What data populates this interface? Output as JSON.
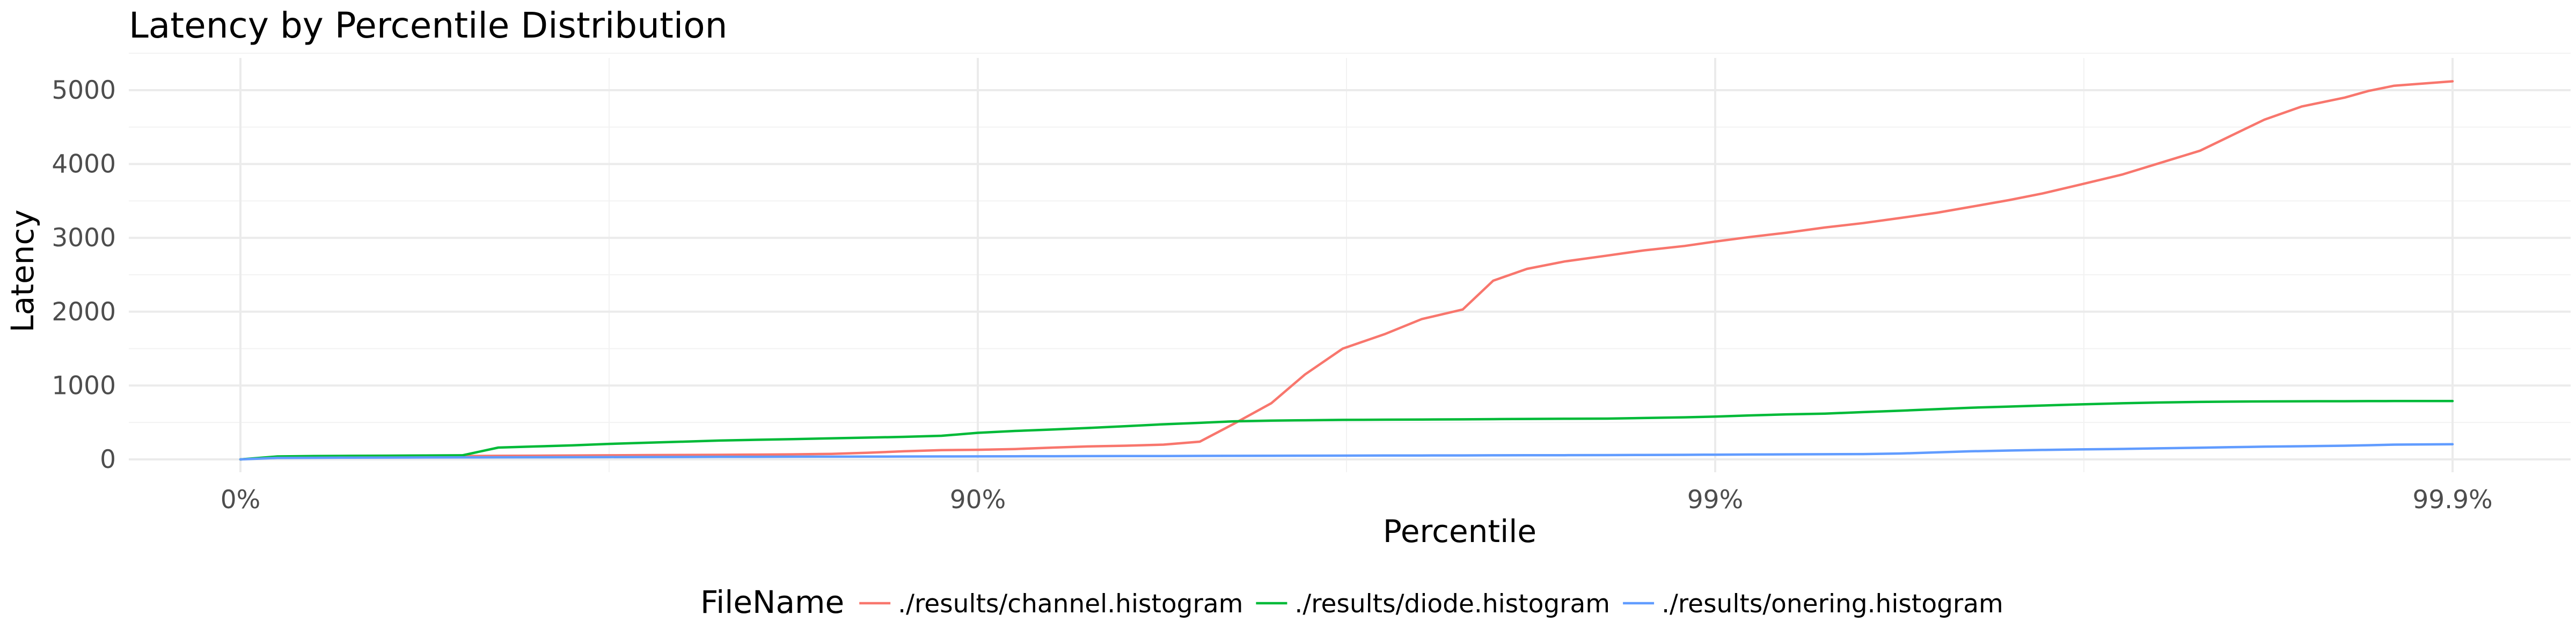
{
  "chart_data": {
    "type": "line",
    "title": "Latency by Percentile Distribution",
    "xlabel": "Percentile",
    "ylabel": "Latency",
    "x_scale": "inverse-percentile (log10 of 1/(1-p))",
    "x_ticks": [
      0,
      90,
      99,
      99.9
    ],
    "x_tick_labels": [
      "0%",
      "90%",
      "99%",
      "99.9%"
    ],
    "ylim": [
      0,
      5300
    ],
    "y_ticks": [
      0,
      1000,
      2000,
      3000,
      4000,
      5000
    ],
    "y_tick_labels": [
      "0",
      "1000",
      "2000",
      "3000",
      "4000",
      "5000"
    ],
    "grid": true,
    "legend_position": "bottom",
    "legend_title": "FileName",
    "series": [
      {
        "name": "./results/channel.histogram",
        "color": "#F8766D",
        "x": [
          0,
          10.9,
          20.6,
          29.2,
          36.9,
          43.8,
          50.0,
          55.3,
          60.2,
          64.5,
          68.4,
          71.8,
          74.9,
          77.6,
          80.0,
          82.2,
          84.2,
          85.9,
          87.4,
          88.8,
          90.0,
          91.1,
          92.1,
          92.9,
          93.7,
          94.4,
          95.0,
          95.5,
          96.0,
          96.4,
          96.8,
          97.2,
          97.5,
          97.8,
          98.0,
          98.2,
          98.4,
          98.6,
          98.75,
          98.9,
          99.0,
          99.1,
          99.2,
          99.29,
          99.37,
          99.44,
          99.5,
          99.55,
          99.6,
          99.64,
          99.68,
          99.72,
          99.75,
          99.78,
          99.8,
          99.82,
          99.84,
          99.86,
          99.87,
          99.88,
          99.9
        ],
        "y": [
          0,
          30,
          35,
          38,
          40,
          42,
          45,
          48,
          50,
          52,
          55,
          58,
          60,
          62,
          65,
          68,
          75,
          90,
          110,
          125,
          130,
          140,
          160,
          175,
          185,
          200,
          240,
          480,
          760,
          1150,
          1500,
          1700,
          1900,
          2030,
          2420,
          2580,
          2680,
          2760,
          2830,
          2890,
          2950,
          3010,
          3070,
          3140,
          3200,
          3270,
          3340,
          3420,
          3510,
          3600,
          3720,
          3860,
          4010,
          4180,
          4380,
          4600,
          4780,
          4900,
          4990,
          5060,
          5120
        ]
      },
      {
        "name": "./results/diode.histogram",
        "color": "#00BA38",
        "x": [
          0,
          10.9,
          20.6,
          29.2,
          36.9,
          43.8,
          50.0,
          55.3,
          60.2,
          64.5,
          68.4,
          71.8,
          74.9,
          77.6,
          80.0,
          82.2,
          84.2,
          85.9,
          87.4,
          88.8,
          90.0,
          91.1,
          92.1,
          92.9,
          93.7,
          94.4,
          95.0,
          95.5,
          96.0,
          96.4,
          96.8,
          97.2,
          97.5,
          97.8,
          98.0,
          98.2,
          98.4,
          98.6,
          98.75,
          98.9,
          99.0,
          99.1,
          99.2,
          99.29,
          99.37,
          99.44,
          99.5,
          99.55,
          99.6,
          99.64,
          99.68,
          99.72,
          99.75,
          99.78,
          99.8,
          99.82,
          99.84,
          99.86,
          99.87,
          99.88,
          99.9
        ],
        "y": [
          0,
          40,
          45,
          48,
          50,
          52,
          55,
          160,
          175,
          190,
          210,
          225,
          240,
          255,
          265,
          275,
          285,
          295,
          305,
          320,
          360,
          385,
          405,
          425,
          450,
          475,
          495,
          515,
          525,
          530,
          535,
          538,
          540,
          542,
          545,
          548,
          550,
          552,
          560,
          570,
          580,
          595,
          610,
          620,
          640,
          660,
          680,
          700,
          715,
          730,
          745,
          760,
          770,
          778,
          782,
          785,
          787,
          788,
          789,
          790,
          790
        ]
      },
      {
        "name": "./results/onering.histogram",
        "color": "#619CFF",
        "x": [
          0,
          10.9,
          20.6,
          29.2,
          36.9,
          43.8,
          50.0,
          55.3,
          60.2,
          64.5,
          68.4,
          71.8,
          74.9,
          77.6,
          80.0,
          82.2,
          84.2,
          85.9,
          87.4,
          88.8,
          90.0,
          91.1,
          92.1,
          92.9,
          93.7,
          94.4,
          95.0,
          95.5,
          96.0,
          96.4,
          96.8,
          97.2,
          97.5,
          97.8,
          98.0,
          98.2,
          98.4,
          98.6,
          98.75,
          98.9,
          99.0,
          99.1,
          99.2,
          99.29,
          99.37,
          99.44,
          99.5,
          99.55,
          99.6,
          99.64,
          99.68,
          99.72,
          99.75,
          99.78,
          99.8,
          99.82,
          99.84,
          99.86,
          99.87,
          99.88,
          99.9
        ],
        "y": [
          0,
          20,
          22,
          24,
          25,
          26,
          27,
          28,
          29,
          30,
          31,
          32,
          33,
          34,
          35,
          36,
          37,
          38,
          39,
          40,
          41,
          42,
          43,
          44,
          45,
          46,
          47,
          48,
          49,
          50,
          51,
          52,
          53,
          54,
          55,
          56,
          57,
          58,
          60,
          62,
          64,
          66,
          68,
          70,
          72,
          80,
          95,
          110,
          120,
          128,
          135,
          142,
          150,
          158,
          165,
          172,
          178,
          185,
          192,
          200,
          205
        ]
      }
    ]
  }
}
